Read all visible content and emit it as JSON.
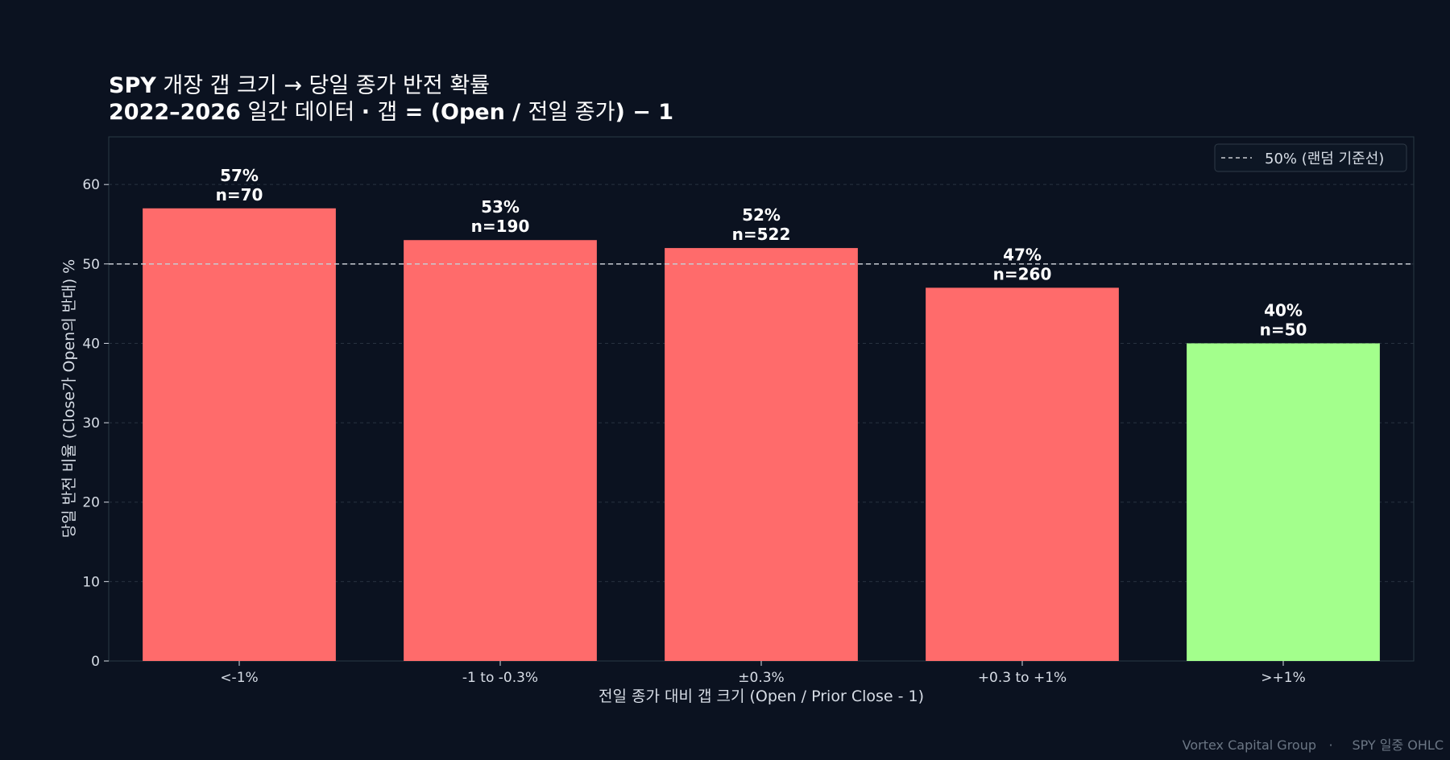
{
  "chart_data": {
    "type": "bar",
    "title_line1_bold": "SPY",
    "title_line1_rest": " 개장 갭 크기 → 당일 종가 반전 확률",
    "title_line2_bold_a": "2022–2026",
    "title_line2_rest_a": " 일간 데이터 ",
    "title_line2_bold_b": "· ",
    "title_line2_rest_b": "갭",
    "title_line2_bold_c": " = (Open / ",
    "title_line2_rest_c": "전일 종가",
    "title_line2_bold_d": ") − 1",
    "xlabel": "전일 종가 대비 갭 크기 (Open / Prior Close - 1)",
    "ylabel": "당일 반전 비율 (Close가 Open의 반대) %",
    "categories": [
      "<-1%",
      "-1 to -0.3%",
      "±0.3%",
      "+0.3 to +1%",
      ">+1%"
    ],
    "values": [
      57,
      53,
      52,
      47,
      40
    ],
    "value_labels": [
      "57%",
      "53%",
      "52%",
      "47%",
      "40%"
    ],
    "counts": [
      "n=70",
      "n=190",
      "n=522",
      "n=260",
      "n=50"
    ],
    "bar_colors": [
      "#ff6b6b",
      "#ff6b6b",
      "#ff6b6b",
      "#ff6b6b",
      "#a3ff8c"
    ],
    "ylim": [
      0,
      66
    ],
    "yticks": [
      0,
      10,
      20,
      30,
      40,
      50,
      60
    ],
    "reference_line": {
      "value": 50,
      "label": "50% (랜덤 기준선)",
      "color": "#c8ccd2"
    },
    "legend_placement": "top-right",
    "grid": true
  },
  "footer": {
    "left": "Vortex Capital Group",
    "separator": "·",
    "right": "SPY 일중 OHLC"
  },
  "colors": {
    "background": "#0b1220",
    "plot_border": "#2a3b44",
    "grid": "#283240",
    "axis_text": "#d7dde6"
  }
}
